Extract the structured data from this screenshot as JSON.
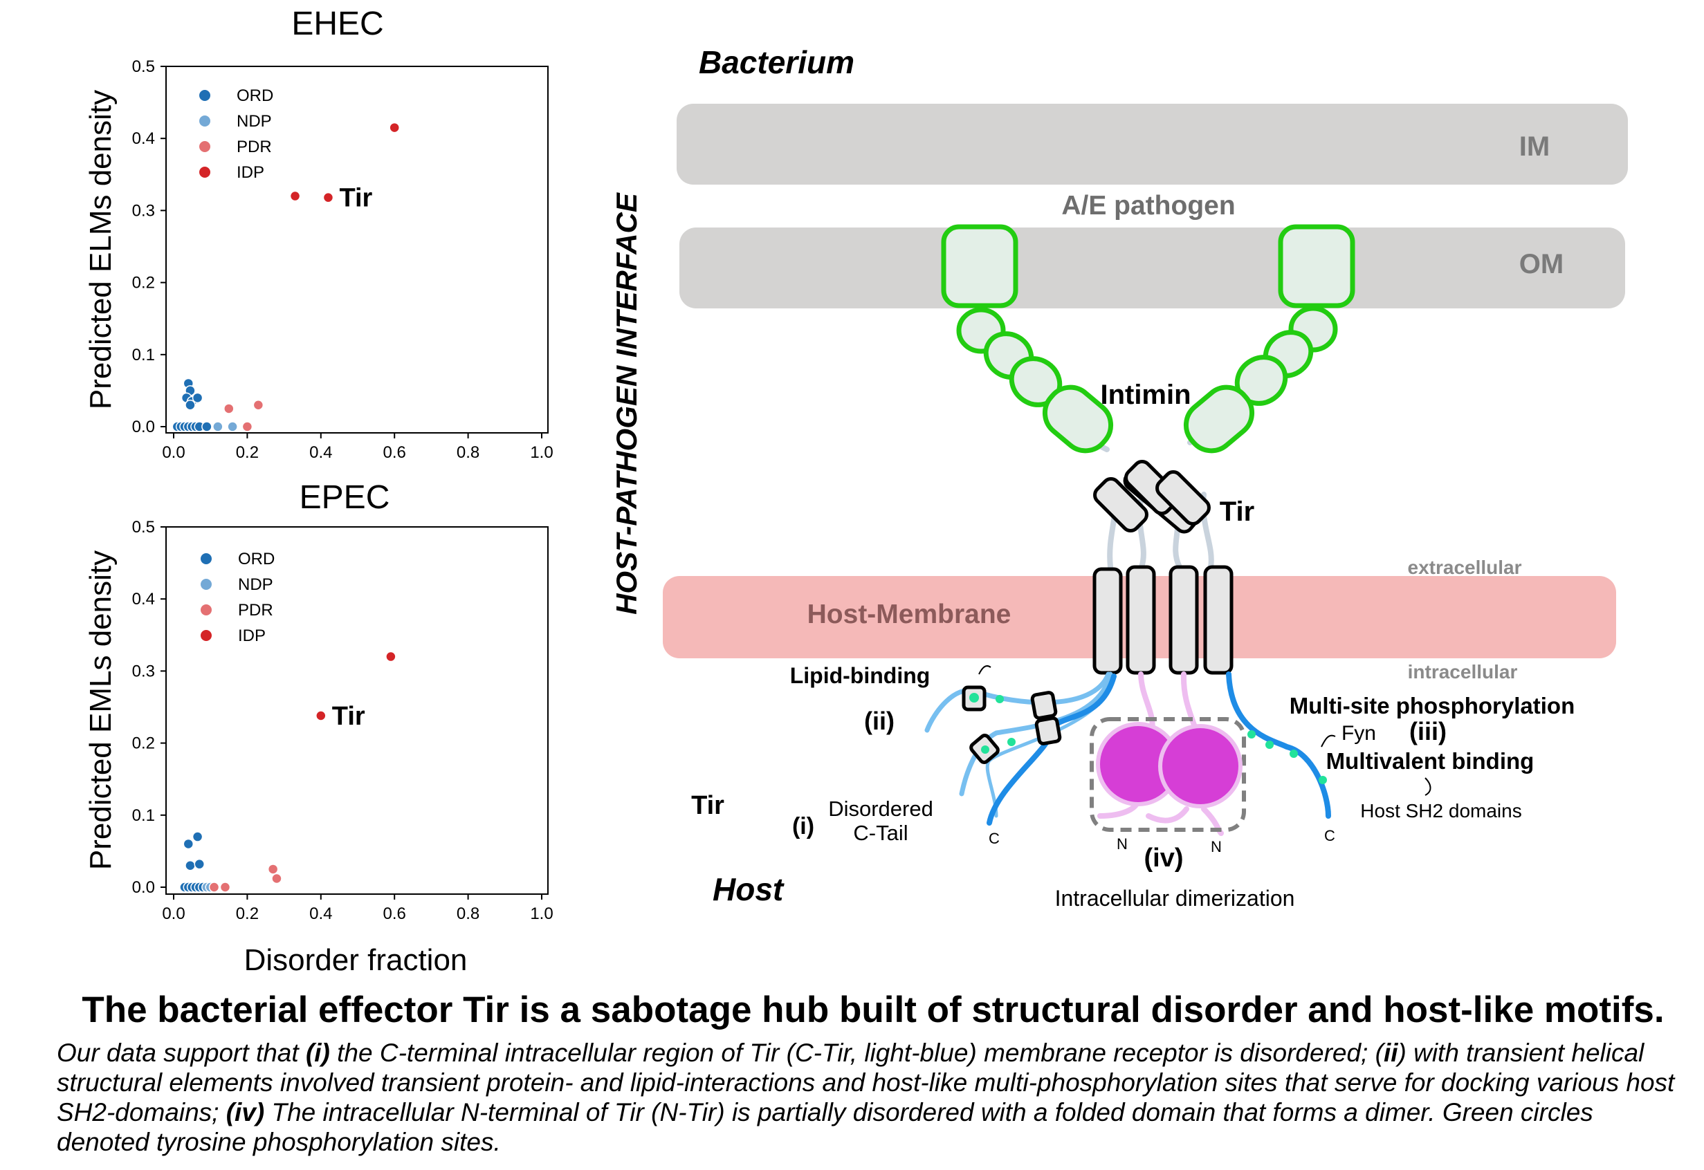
{
  "charts": {
    "xlabel": "Disorder fraction",
    "x_ticks": [
      "0.0",
      "0.2",
      "0.4",
      "0.6",
      "0.8",
      "1.0"
    ],
    "y_ticks": [
      "0.0",
      "0.1",
      "0.2",
      "0.3",
      "0.4",
      "0.5"
    ]
  },
  "chart_data": [
    {
      "type": "scatter",
      "title": "EHEC",
      "xlabel": "",
      "ylabel": "Predicted ELMs density",
      "xlim": [
        0.0,
        1.0
      ],
      "ylim": [
        0.0,
        0.5
      ],
      "legend_position": "top-left",
      "annotation": {
        "text": "Tir",
        "x": 0.42,
        "y": 0.318
      },
      "series": [
        {
          "name": "ORD",
          "color": "#1f6fb4",
          "points": [
            [
              0.01,
              0.0
            ],
            [
              0.02,
              0.0
            ],
            [
              0.03,
              0.0
            ],
            [
              0.04,
              0.0
            ],
            [
              0.05,
              0.0
            ],
            [
              0.06,
              0.0
            ],
            [
              0.07,
              0.0
            ],
            [
              0.09,
              0.0
            ],
            [
              0.04,
              0.06
            ],
            [
              0.045,
              0.05
            ],
            [
              0.035,
              0.04
            ],
            [
              0.05,
              0.035
            ],
            [
              0.065,
              0.04
            ],
            [
              0.045,
              0.03
            ]
          ]
        },
        {
          "name": "NDP",
          "color": "#74a9d6",
          "points": [
            [
              0.12,
              0.0
            ],
            [
              0.16,
              0.0
            ]
          ]
        },
        {
          "name": "PDR",
          "color": "#e47072",
          "points": [
            [
              0.15,
              0.025
            ],
            [
              0.23,
              0.03
            ],
            [
              0.2,
              0.0
            ]
          ]
        },
        {
          "name": "IDP",
          "color": "#d42427",
          "points": [
            [
              0.6,
              0.415
            ],
            [
              0.33,
              0.32
            ],
            [
              0.42,
              0.318
            ]
          ]
        }
      ]
    },
    {
      "type": "scatter",
      "title": "EPEC",
      "xlabel": "Disorder fraction",
      "ylabel": "Predicted EMLs density",
      "xlim": [
        0.0,
        1.0
      ],
      "ylim": [
        0.0,
        0.5
      ],
      "legend_position": "top-left",
      "annotation": {
        "text": "Tir",
        "x": 0.4,
        "y": 0.238
      },
      "series": [
        {
          "name": "ORD",
          "color": "#1f6fb4",
          "points": [
            [
              0.03,
              0.0
            ],
            [
              0.04,
              0.0
            ],
            [
              0.05,
              0.0
            ],
            [
              0.06,
              0.0
            ],
            [
              0.07,
              0.0
            ],
            [
              0.08,
              0.0
            ],
            [
              0.04,
              0.06
            ],
            [
              0.065,
              0.07
            ],
            [
              0.045,
              0.03
            ],
            [
              0.07,
              0.032
            ]
          ]
        },
        {
          "name": "NDP",
          "color": "#74a9d6",
          "points": [
            [
              0.09,
              0.0
            ],
            [
              0.1,
              0.0
            ]
          ]
        },
        {
          "name": "PDR",
          "color": "#e47072",
          "points": [
            [
              0.27,
              0.025
            ],
            [
              0.28,
              0.012
            ],
            [
              0.11,
              0.0
            ],
            [
              0.14,
              0.0
            ]
          ]
        },
        {
          "name": "IDP",
          "color": "#d42427",
          "points": [
            [
              0.59,
              0.32
            ],
            [
              0.4,
              0.238
            ]
          ]
        }
      ]
    }
  ],
  "diagram": {
    "bacterium_label": "Bacterium",
    "host_label": "Host",
    "interface_label": "HOST-PATHOGEN INTERFACE",
    "im_label": "IM",
    "om_label": "OM",
    "pathogen_label": "A/E pathogen",
    "intimin_label": "Intimin",
    "tir_label_top": "Tir",
    "host_membrane_label": "Host-Membrane",
    "extracellular_label": "extracellular",
    "intracellular_label": "intracellular",
    "lipid_binding_label": "Lipid-binding",
    "ii_label": "(ii)",
    "tir_label_left": "Tir",
    "i_label": "(i)",
    "disordered_line1": "Disordered",
    "disordered_line2": "C-Tail",
    "c_label_left": "C",
    "c_label_right": "C",
    "n_label_left": "N",
    "n_label_right": "N",
    "iv_label": "(iv)",
    "dimerization_label": "Intracellular dimerization",
    "phospho_label": "Multi-site phosphorylation",
    "fyn_label": "Fyn",
    "iii_label": "(iii)",
    "multivalent_label": "Multivalent binding",
    "sh2_label": "Host SH2 domains",
    "colors": {
      "membrane_grey": "#d4d3d2",
      "host_membrane": "#f5b9b8",
      "intimin_green": "#22cc11",
      "intimin_fill": "#e3efe7",
      "ctail_light_blue": "#77bff0",
      "ctail_blue": "#1e8ce6",
      "ntir_magenta": "#d63ed6",
      "ntir_light": "#eebdf0",
      "phospho_green": "#22e29a"
    }
  },
  "caption": {
    "title": "The bacterial effector Tir is a sabotage hub built of structural disorder and host-like motifs.",
    "p1": "Our data support that ",
    "i": "(i)",
    "p2": " the C-terminal intracellular region of Tir (C-Tir, light-blue) membrane receptor is disordered; (",
    "ii": "ii",
    "p3": ") with transient helical structural elements involved transient protein- and lipid-interactions and host-like multi-phosphorylation sites that serve for docking various host SH2-domains; ",
    "iv": "(iv)",
    "p4": " The intracellular N-terminal of Tir (N-Tir) is partially disordered with a folded domain that forms a dimer.  Green circles denoted tyrosine phosphorylation sites."
  }
}
